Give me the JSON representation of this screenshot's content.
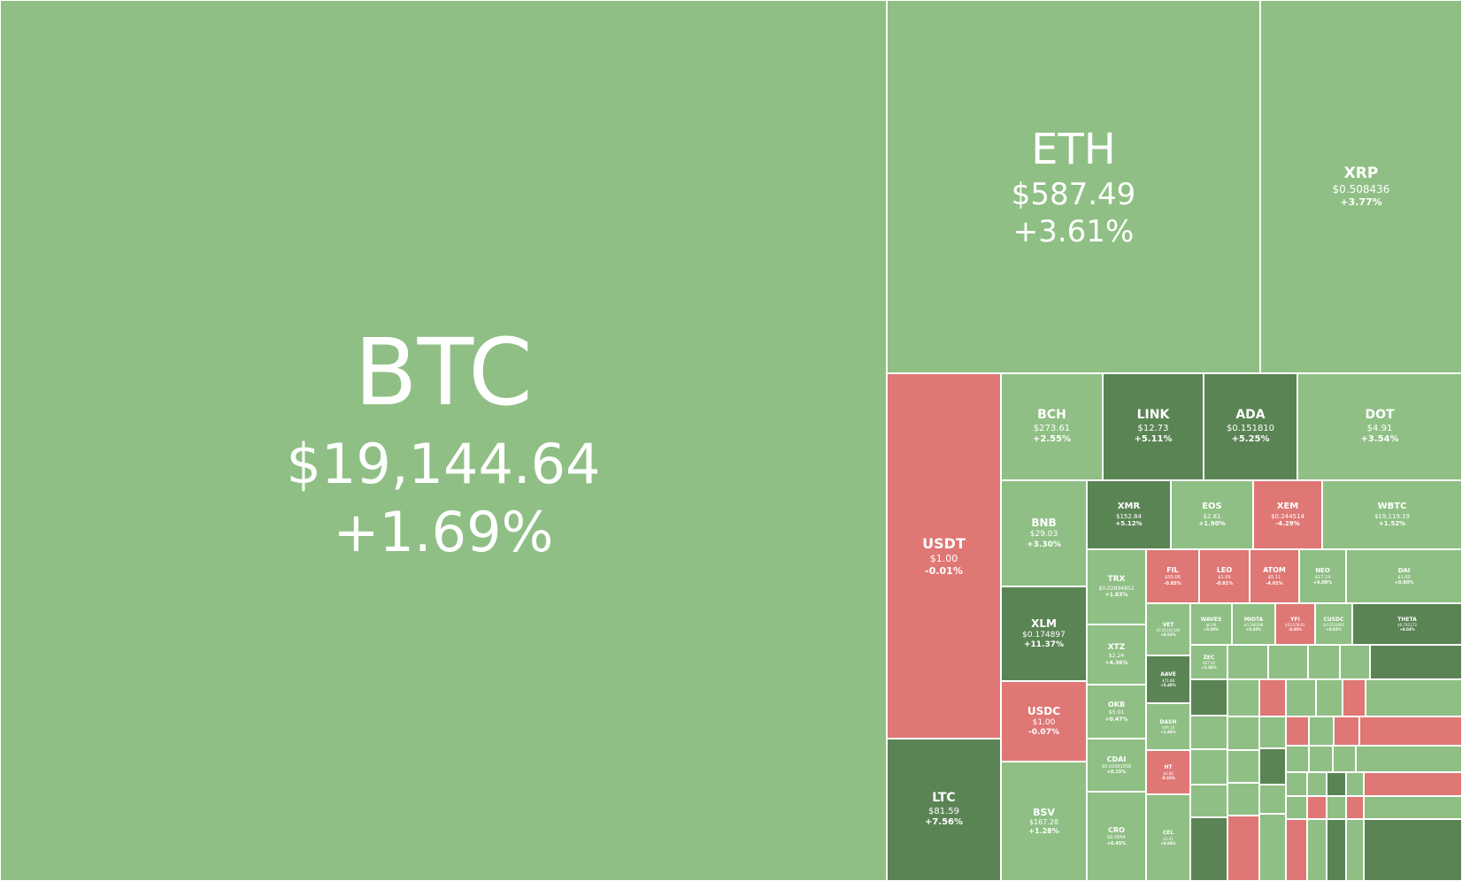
{
  "colors": {
    "up": "#8fbf84",
    "strong_up": "#5b8455",
    "down": "#df7775",
    "border": "#ffffff",
    "text": "#ffffff"
  },
  "coins": [
    {
      "id": "btc",
      "symbol": "BTC",
      "price": "$19,144.64",
      "change": "+1.69%",
      "trend": "up"
    },
    {
      "id": "eth",
      "symbol": "ETH",
      "price": "$587.49",
      "change": "+3.61%",
      "trend": "up"
    },
    {
      "id": "xrp",
      "symbol": "XRP",
      "price": "$0.508436",
      "change": "+3.77%",
      "trend": "up"
    },
    {
      "id": "usdt",
      "symbol": "USDT",
      "price": "$1.00",
      "change": "-0.01%",
      "trend": "down"
    },
    {
      "id": "bch",
      "symbol": "BCH",
      "price": "$273.61",
      "change": "+2.55%",
      "trend": "up"
    },
    {
      "id": "link",
      "symbol": "LINK",
      "price": "$12.73",
      "change": "+5.11%",
      "trend": "strong_up"
    },
    {
      "id": "ada",
      "symbol": "ADA",
      "price": "$0.151810",
      "change": "+5.25%",
      "trend": "strong_up"
    },
    {
      "id": "dot",
      "symbol": "DOT",
      "price": "$4.91",
      "change": "+3.54%",
      "trend": "up"
    },
    {
      "id": "bnb",
      "symbol": "BNB",
      "price": "$29.03",
      "change": "+3.30%",
      "trend": "up"
    },
    {
      "id": "xmr",
      "symbol": "XMR",
      "price": "$152.84",
      "change": "+5.12%",
      "trend": "strong_up"
    },
    {
      "id": "eos",
      "symbol": "EOS",
      "price": "$2.81",
      "change": "+1.90%",
      "trend": "up"
    },
    {
      "id": "xem",
      "symbol": "XEM",
      "price": "$0.244514",
      "change": "-4.29%",
      "trend": "down"
    },
    {
      "id": "wbtc",
      "symbol": "WBTC",
      "price": "$19,119.19",
      "change": "+1.52%",
      "trend": "up"
    },
    {
      "id": "xlm",
      "symbol": "XLM",
      "price": "$0.174897",
      "change": "+11.37%",
      "trend": "strong_up"
    },
    {
      "id": "trx",
      "symbol": "TRX",
      "price": "$0.02894852",
      "change": "+1.83%",
      "trend": "up"
    },
    {
      "id": "fil",
      "symbol": "FIL",
      "price": "$30.08",
      "change": "-0.85%",
      "trend": "down"
    },
    {
      "id": "leo",
      "symbol": "LEO",
      "price": "$1.09",
      "change": "-0.81%",
      "trend": "down"
    },
    {
      "id": "atom",
      "symbol": "ATOM",
      "price": "$5.11",
      "change": "-4.01%",
      "trend": "down"
    },
    {
      "id": "neo",
      "symbol": "NEO",
      "price": "$17.24",
      "change": "+4.08%",
      "trend": "up"
    },
    {
      "id": "dai",
      "symbol": "DAI",
      "price": "$1.00",
      "change": "+0.00%",
      "trend": "up"
    },
    {
      "id": "xtz",
      "symbol": "XTZ",
      "price": "$2.24",
      "change": "+4.36%",
      "trend": "up"
    },
    {
      "id": "vet",
      "symbol": "VET",
      "price": "$0.01241340",
      "change": "+0.53%",
      "trend": "up"
    },
    {
      "id": "waves",
      "symbol": "WAVES",
      "price": "$6.98",
      "change": "+0.30%",
      "trend": "up"
    },
    {
      "id": "mkr",
      "symbol": "MIOTA",
      "price": "$0.286598",
      "change": "+0.30%",
      "trend": "up"
    },
    {
      "id": "yfi",
      "symbol": "YFI",
      "price": "$23,578.81",
      "change": "-0.40%",
      "trend": "down"
    },
    {
      "id": "cusdc",
      "symbol": "CUSDC",
      "price": "$0.0210692",
      "change": "+0.02%",
      "trend": "up"
    },
    {
      "id": "theta",
      "symbol": "THETA",
      "price": "$0.781173",
      "change": "+8.04%",
      "trend": "strong_up"
    },
    {
      "id": "usdc",
      "symbol": "USDC",
      "price": "$1.00",
      "change": "-0.07%",
      "trend": "down"
    },
    {
      "id": "okb",
      "symbol": "OKB",
      "price": "$5.01",
      "change": "+0.47%",
      "trend": "up"
    },
    {
      "id": "aave",
      "symbol": "AAVE",
      "price": "$71.88",
      "change": "+5.48%",
      "trend": "strong_up"
    },
    {
      "id": "zec",
      "symbol": "ZEC",
      "price": "$67.00",
      "change": "+1.36%",
      "trend": "up"
    },
    {
      "id": "cdai",
      "symbol": "CDAI",
      "price": "$0.02081056",
      "change": "+0.15%",
      "trend": "up"
    },
    {
      "id": "dash",
      "symbol": "DASH",
      "price": "$99.18",
      "change": "+1.46%",
      "trend": "up"
    },
    {
      "id": "ht",
      "symbol": "HT",
      "price": "$4.88",
      "change": "-0.33%",
      "trend": "down"
    },
    {
      "id": "ltc",
      "symbol": "LTC",
      "price": "$81.59",
      "change": "+7.56%",
      "trend": "strong_up"
    },
    {
      "id": "bsv",
      "symbol": "BSV",
      "price": "$167.28",
      "change": "+1.28%",
      "trend": "up"
    },
    {
      "id": "cro",
      "symbol": "CRO",
      "price": "$0.0664",
      "change": "+0.45%",
      "trend": "up"
    },
    {
      "id": "cel",
      "symbol": "CEL",
      "price": "$2.41",
      "change": "+0.88%",
      "trend": "up"
    }
  ]
}
